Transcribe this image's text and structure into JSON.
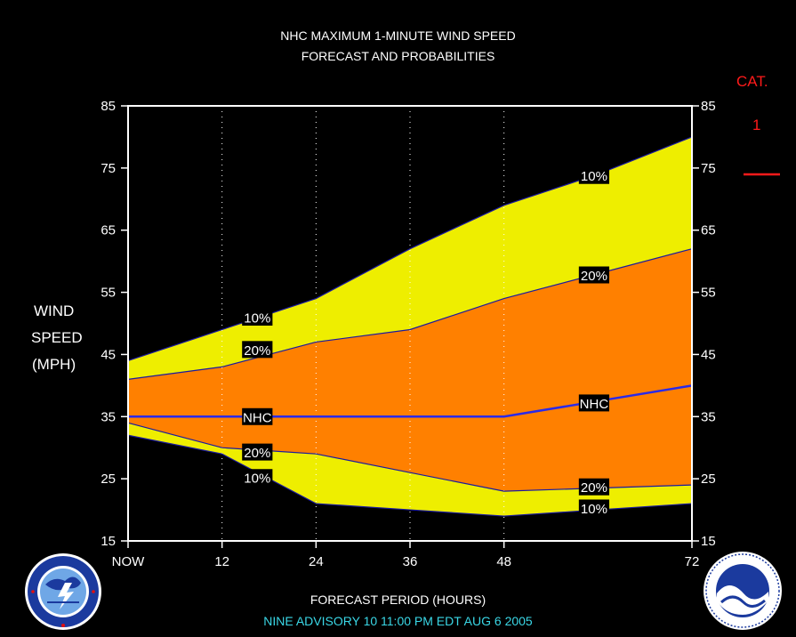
{
  "title": {
    "line1": "NHC MAXIMUM 1-MINUTE WIND SPEED",
    "line2": "FORECAST AND PROBABILITIES"
  },
  "ylabel": {
    "line1": "WIND",
    "line2": "SPEED",
    "line3": "(MPH)"
  },
  "xlabel": "FORECAST PERIOD (HOURS)",
  "footer": "NINE    ADVISORY  10  11:00  PM  EDT  AUG  6  2005",
  "category": {
    "label": "CAT.",
    "number": "1",
    "color": "#ff1a1a"
  },
  "colors": {
    "background": "#000000",
    "outer_band": "#eeee00",
    "inner_band": "#ff8000",
    "nhc_line": "#2a2ae8",
    "edge_line": "#1a1aa0",
    "footer_text": "#3ad7e6"
  },
  "chart_data": {
    "type": "area",
    "title": "NHC MAXIMUM 1-MINUTE WIND SPEED FORECAST AND PROBABILITIES",
    "xlabel": "FORECAST PERIOD (HOURS)",
    "ylabel": "WIND SPEED (MPH)",
    "xlim": [
      0,
      72
    ],
    "ylim": [
      15,
      85
    ],
    "x_ticks": [
      0,
      12,
      24,
      36,
      48,
      72
    ],
    "x_tick_labels": [
      "NOW",
      "12",
      "24",
      "36",
      "48",
      "72"
    ],
    "y_ticks": [
      15,
      25,
      35,
      45,
      55,
      65,
      75,
      85
    ],
    "grid_x": [
      12,
      24,
      36,
      48,
      72
    ],
    "series": [
      {
        "name": "10%",
        "x": [
          0,
          12,
          24,
          36,
          48,
          60,
          72
        ],
        "values": [
          44,
          49,
          54,
          62,
          69,
          74,
          80
        ]
      },
      {
        "name": "20%",
        "x": [
          0,
          12,
          24,
          36,
          48,
          60,
          72
        ],
        "values": [
          41,
          43,
          47,
          49,
          54,
          58,
          62
        ]
      },
      {
        "name": "NHC",
        "x": [
          0,
          12,
          24,
          36,
          48,
          60,
          72
        ],
        "values": [
          35,
          35,
          35,
          35,
          35,
          37.5,
          40
        ]
      },
      {
        "name": "20%",
        "x": [
          0,
          12,
          24,
          36,
          48,
          60,
          72
        ],
        "values": [
          34,
          30,
          29,
          26,
          23,
          23.5,
          24
        ]
      },
      {
        "name": "10%",
        "x": [
          0,
          12,
          24,
          36,
          48,
          60,
          72
        ],
        "values": [
          32,
          29,
          21,
          20,
          19,
          20,
          21
        ]
      }
    ],
    "series_labels": [
      {
        "text": "10%",
        "x": 16.5,
        "y": 51
      },
      {
        "text": "20%",
        "x": 16.5,
        "y": 45.8
      },
      {
        "text": "NHC",
        "x": 16.5,
        "y": 35
      },
      {
        "text": "20%",
        "x": 16.5,
        "y": 29.3
      },
      {
        "text": "10%",
        "x": 16.5,
        "y": 25.2
      },
      {
        "text": "10%",
        "x": 59.5,
        "y": 73.8
      },
      {
        "text": "20%",
        "x": 59.5,
        "y": 57.8
      },
      {
        "text": "NHC",
        "x": 59.5,
        "y": 37.2
      },
      {
        "text": "20%",
        "x": 59.5,
        "y": 23.7
      },
      {
        "text": "10%",
        "x": 59.5,
        "y": 20.3
      }
    ]
  }
}
